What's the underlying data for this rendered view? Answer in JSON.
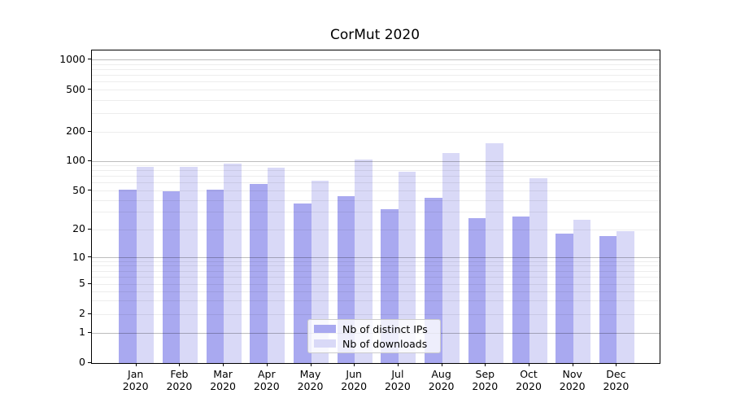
{
  "chart_data": {
    "type": "bar",
    "title": "CorMut 2020",
    "categories": [
      "Jan 2020",
      "Feb 2020",
      "Mar 2020",
      "Apr 2020",
      "May 2020",
      "Jun 2020",
      "Jul 2020",
      "Aug 2020",
      "Sep 2020",
      "Oct 2020",
      "Nov 2020",
      "Dec 2020"
    ],
    "month_labels": [
      "Jan",
      "Feb",
      "Mar",
      "Apr",
      "May",
      "Jun",
      "Jul",
      "Aug",
      "Sep",
      "Oct",
      "Nov",
      "Dec"
    ],
    "year_label": "2020",
    "series": [
      {
        "name": "Nb of distinct IPs",
        "color": "#a9a9f0",
        "values": [
          51,
          49,
          51,
          58,
          37,
          44,
          32,
          42,
          26,
          27,
          18,
          17
        ]
      },
      {
        "name": "Nb of downloads",
        "color": "#d9d9f7",
        "values": [
          86,
          86,
          94,
          85,
          63,
          102,
          78,
          121,
          152,
          67,
          25,
          19
        ]
      }
    ],
    "y_axis": {
      "ticks": [
        0,
        1,
        2,
        5,
        10,
        20,
        50,
        100,
        200,
        500,
        1000
      ],
      "scale": "log-like with 0 baseline (asinh/symlog)",
      "ylim": [
        0,
        1300
      ]
    },
    "x_axis": {
      "label": ""
    },
    "grid": {
      "horizontal": true,
      "major_at": [
        1,
        10,
        100,
        1000
      ],
      "minor_within_decades": true
    },
    "legend": {
      "position": "bottom-center",
      "entries": [
        "Nb of distinct IPs",
        "Nb of downloads"
      ]
    }
  },
  "colors": {
    "bar_ips": "#a9a9f0",
    "bar_downloads": "#d9d9f7",
    "spine": "#000000",
    "grid_major": "rgba(0,0,0,0.26)",
    "grid_minor": "rgba(0,0,0,0.07)",
    "text": "#000000",
    "legend_border": "#cccccc",
    "legend_bg": "rgba(255,255,255,0.8)"
  }
}
